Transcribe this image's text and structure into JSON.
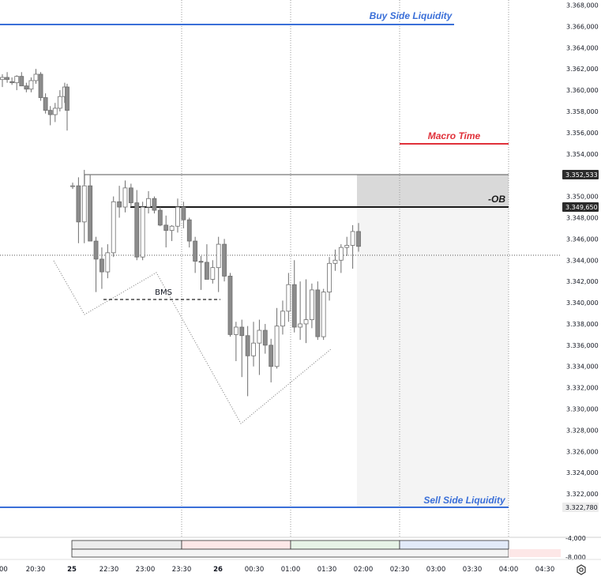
{
  "chart_data": {
    "type": "candlestick",
    "y_axis": {
      "range": [
        3.32,
        3.3683
      ],
      "ticks": [
        "3.368,000",
        "3.366,000",
        "3.364,000",
        "3.362,000",
        "3.360,000",
        "3.358,000",
        "3.356,000",
        "3.354,000",
        "3.352,000",
        "3.350,000",
        "3.348,000",
        "3.346,000",
        "3.344,000",
        "3.342,000",
        "3.340,000",
        "3.338,000",
        "3.336,000",
        "3.334,000",
        "3.332,000",
        "3.330,000",
        "3.328,000",
        "3.326,000",
        "3.324,000",
        "3.322,000"
      ],
      "price_tags": [
        {
          "text": "3.352,533",
          "style": "dark"
        },
        {
          "text": "3.349,650",
          "style": "dark"
        },
        {
          "text": "3.322,780",
          "style": "light"
        }
      ]
    },
    "x_axis": {
      "ticks": [
        ":00",
        "20:30",
        "25",
        "22:30",
        "23:00",
        "23:30",
        "26",
        "00:30",
        "01:00",
        "01:30",
        "02:00",
        "02:30",
        "03:00",
        "03:30",
        "04:00",
        "04:30"
      ],
      "bold_ticks": [
        "25",
        "26"
      ]
    },
    "indicator_axis": {
      "ticks": [
        "-4,000",
        "-8,000"
      ]
    },
    "annotations": {
      "buy_side": {
        "label": "Buy Side Liquidity",
        "price": 3.366,
        "color": "#3a6fd8"
      },
      "sell_side": {
        "label": "Sell Side Liquidity",
        "price": 3.3227,
        "color": "#3a6fd8"
      },
      "macro_time": {
        "label": "Macro Time",
        "price": 3.3553,
        "color": "#e0313a"
      },
      "ob": {
        "label": "-OB",
        "top": 3.35253,
        "bottom": 3.34965
      },
      "bms": {
        "label": "BMS",
        "price": 3.34125
      }
    },
    "candles": [
      {
        "o": 3.361,
        "h": 3.3615,
        "l": 3.3603,
        "c": 3.3612
      },
      {
        "o": 3.3612,
        "h": 3.3617,
        "l": 3.3607,
        "c": 3.361
      },
      {
        "o": 3.3608,
        "h": 3.3612,
        "l": 3.3605,
        "c": 3.3607
      },
      {
        "o": 3.3607,
        "h": 3.3614,
        "l": 3.36,
        "c": 3.3613
      },
      {
        "o": 3.3613,
        "h": 3.3617,
        "l": 3.3607,
        "c": 3.3604
      },
      {
        "o": 3.3604,
        "h": 3.3607,
        "l": 3.3598,
        "c": 3.3601
      },
      {
        "o": 3.3601,
        "h": 3.3612,
        "l": 3.3598,
        "c": 3.3609
      },
      {
        "o": 3.3609,
        "h": 3.362,
        "l": 3.3606,
        "c": 3.3615
      },
      {
        "o": 3.3615,
        "h": 3.3617,
        "l": 3.359,
        "c": 3.3593
      },
      {
        "o": 3.3593,
        "h": 3.3597,
        "l": 3.3578,
        "c": 3.3581
      },
      {
        "o": 3.3581,
        "h": 3.3585,
        "l": 3.3567,
        "c": 3.3577
      },
      {
        "o": 3.3577,
        "h": 3.3588,
        "l": 3.357,
        "c": 3.3583
      },
      {
        "o": 3.3583,
        "h": 3.36,
        "l": 3.358,
        "c": 3.3594
      },
      {
        "o": 3.3594,
        "h": 3.3607,
        "l": 3.3588,
        "c": 3.3603
      },
      {
        "o": 3.3603,
        "h": 3.3606,
        "l": 3.3562,
        "c": 3.3581
      },
      {
        "o": 3.351,
        "h": 3.3513,
        "l": 3.3507,
        "c": 3.351
      },
      {
        "o": 3.351,
        "h": 3.3518,
        "l": 3.3456,
        "c": 3.3476
      },
      {
        "o": 3.3476,
        "h": 3.3525,
        "l": 3.3456,
        "c": 3.351
      },
      {
        "o": 3.351,
        "h": 3.352,
        "l": 3.346,
        "c": 3.3458
      },
      {
        "o": 3.3458,
        "h": 3.3462,
        "l": 3.341,
        "c": 3.3441
      },
      {
        "o": 3.3441,
        "h": 3.3452,
        "l": 3.3413,
        "c": 3.3429
      },
      {
        "o": 3.3429,
        "h": 3.3455,
        "l": 3.3423,
        "c": 3.3447
      },
      {
        "o": 3.3447,
        "h": 3.35,
        "l": 3.3443,
        "c": 3.3495
      },
      {
        "o": 3.3495,
        "h": 3.351,
        "l": 3.348,
        "c": 3.349
      },
      {
        "o": 3.349,
        "h": 3.3515,
        "l": 3.3485,
        "c": 3.3508
      },
      {
        "o": 3.3508,
        "h": 3.3512,
        "l": 3.349,
        "c": 3.3494
      },
      {
        "o": 3.3494,
        "h": 3.3506,
        "l": 3.344,
        "c": 3.3443
      },
      {
        "o": 3.3443,
        "h": 3.3495,
        "l": 3.344,
        "c": 3.349
      },
      {
        "o": 3.349,
        "h": 3.3505,
        "l": 3.3484,
        "c": 3.3498
      },
      {
        "o": 3.3498,
        "h": 3.35,
        "l": 3.3484,
        "c": 3.3487
      },
      {
        "o": 3.3487,
        "h": 3.349,
        "l": 3.3472,
        "c": 3.3473
      },
      {
        "o": 3.3473,
        "h": 3.3482,
        "l": 3.3452,
        "c": 3.3468
      },
      {
        "o": 3.3468,
        "h": 3.3473,
        "l": 3.3458,
        "c": 3.3472
      },
      {
        "o": 3.3472,
        "h": 3.3498,
        "l": 3.3466,
        "c": 3.349
      },
      {
        "o": 3.349,
        "h": 3.3495,
        "l": 3.347,
        "c": 3.3478
      },
      {
        "o": 3.3478,
        "h": 3.348,
        "l": 3.3452,
        "c": 3.3458
      },
      {
        "o": 3.3458,
        "h": 3.3462,
        "l": 3.3428,
        "c": 3.3439
      },
      {
        "o": 3.3439,
        "h": 3.3444,
        "l": 3.3412,
        "c": 3.3438
      },
      {
        "o": 3.3438,
        "h": 3.3455,
        "l": 3.3422,
        "c": 3.3422
      },
      {
        "o": 3.3422,
        "h": 3.344,
        "l": 3.3418,
        "c": 3.3433
      },
      {
        "o": 3.3433,
        "h": 3.3462,
        "l": 3.341,
        "c": 3.3455
      },
      {
        "o": 3.3455,
        "h": 3.346,
        "l": 3.342,
        "c": 3.3425
      },
      {
        "o": 3.3425,
        "h": 3.3428,
        "l": 3.3368,
        "c": 3.337
      },
      {
        "o": 3.337,
        "h": 3.3382,
        "l": 3.3345,
        "c": 3.3377
      },
      {
        "o": 3.3377,
        "h": 3.3384,
        "l": 3.333,
        "c": 3.3369
      },
      {
        "o": 3.3369,
        "h": 3.3378,
        "l": 3.3312,
        "c": 3.335
      },
      {
        "o": 3.335,
        "h": 3.3382,
        "l": 3.334,
        "c": 3.3362
      },
      {
        "o": 3.3362,
        "h": 3.3384,
        "l": 3.3332,
        "c": 3.3374
      },
      {
        "o": 3.3374,
        "h": 3.338,
        "l": 3.3352,
        "c": 3.336
      },
      {
        "o": 3.336,
        "h": 3.3366,
        "l": 3.3325,
        "c": 3.334
      },
      {
        "o": 3.334,
        "h": 3.3395,
        "l": 3.3338,
        "c": 3.3378
      },
      {
        "o": 3.3378,
        "h": 3.3402,
        "l": 3.337,
        "c": 3.3392
      },
      {
        "o": 3.3392,
        "h": 3.3428,
        "l": 3.3382,
        "c": 3.3417
      },
      {
        "o": 3.3417,
        "h": 3.344,
        "l": 3.3372,
        "c": 3.3377
      },
      {
        "o": 3.3377,
        "h": 3.342,
        "l": 3.3365,
        "c": 3.338
      },
      {
        "o": 3.338,
        "h": 3.3422,
        "l": 3.3362,
        "c": 3.3384
      },
      {
        "o": 3.3384,
        "h": 3.3418,
        "l": 3.3376,
        "c": 3.3412
      },
      {
        "o": 3.3412,
        "h": 3.342,
        "l": 3.3365,
        "c": 3.3368
      },
      {
        "o": 3.3368,
        "h": 3.3413,
        "l": 3.3365,
        "c": 3.341
      },
      {
        "o": 3.341,
        "h": 3.3443,
        "l": 3.3402,
        "c": 3.3437
      },
      {
        "o": 3.3437,
        "h": 3.345,
        "l": 3.343,
        "c": 3.344
      },
      {
        "o": 3.344,
        "h": 3.3455,
        "l": 3.3428,
        "c": 3.3452
      },
      {
        "o": 3.3452,
        "h": 3.3462,
        "l": 3.3444,
        "c": 3.3454
      },
      {
        "o": 3.3454,
        "h": 3.3473,
        "l": 3.3432,
        "c": 3.3467
      },
      {
        "o": 3.3467,
        "h": 3.3475,
        "l": 3.3448,
        "c": 3.3453
      }
    ]
  },
  "ui": {
    "settings_icon": "settings-gear-icon",
    "colors": {
      "candle": "#8c8c8c",
      "wick": "#707070",
      "grid": "#9a9a9a",
      "ob_zone": "#d9d9d9",
      "projection_zone": "#f3f3f3"
    }
  }
}
